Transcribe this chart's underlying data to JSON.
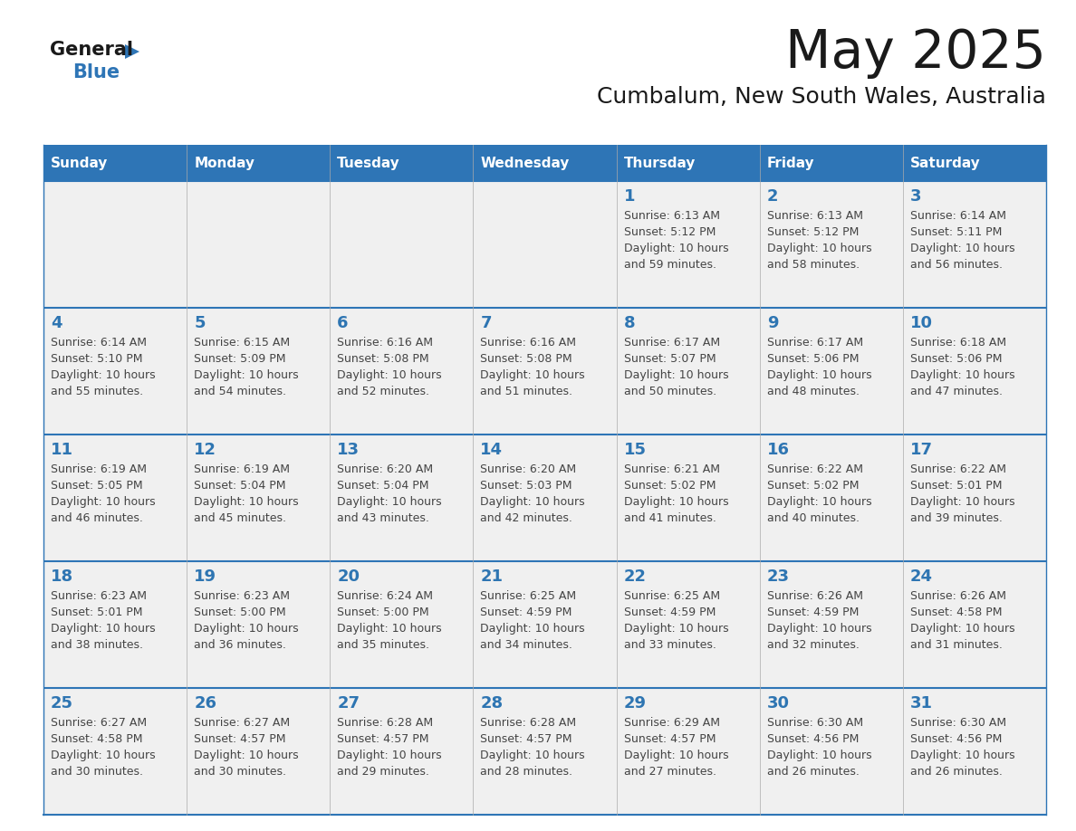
{
  "title": "May 2025",
  "subtitle": "Cumbalum, New South Wales, Australia",
  "header_color": "#2E75B6",
  "header_text_color": "#FFFFFF",
  "background_color": "#FFFFFF",
  "cell_bg_color": "#F0F0F0",
  "day_names": [
    "Sunday",
    "Monday",
    "Tuesday",
    "Wednesday",
    "Thursday",
    "Friday",
    "Saturday"
  ],
  "day_number_color": "#2E75B2",
  "text_color": "#444444",
  "line_color": "#2E75B6",
  "logo_general_color": "#1a1a1a",
  "logo_blue_color": "#2E75B6",
  "logo_triangle_color": "#2E75B6",
  "weeks": [
    [
      {
        "day": null,
        "sunrise": null,
        "sunset": null,
        "daylight_hours": null,
        "daylight_minutes": null
      },
      {
        "day": null,
        "sunrise": null,
        "sunset": null,
        "daylight_hours": null,
        "daylight_minutes": null
      },
      {
        "day": null,
        "sunrise": null,
        "sunset": null,
        "daylight_hours": null,
        "daylight_minutes": null
      },
      {
        "day": null,
        "sunrise": null,
        "sunset": null,
        "daylight_hours": null,
        "daylight_minutes": null
      },
      {
        "day": 1,
        "sunrise": "6:13 AM",
        "sunset": "5:12 PM",
        "daylight_hours": 10,
        "daylight_minutes": 59
      },
      {
        "day": 2,
        "sunrise": "6:13 AM",
        "sunset": "5:12 PM",
        "daylight_hours": 10,
        "daylight_minutes": 58
      },
      {
        "day": 3,
        "sunrise": "6:14 AM",
        "sunset": "5:11 PM",
        "daylight_hours": 10,
        "daylight_minutes": 56
      }
    ],
    [
      {
        "day": 4,
        "sunrise": "6:14 AM",
        "sunset": "5:10 PM",
        "daylight_hours": 10,
        "daylight_minutes": 55
      },
      {
        "day": 5,
        "sunrise": "6:15 AM",
        "sunset": "5:09 PM",
        "daylight_hours": 10,
        "daylight_minutes": 54
      },
      {
        "day": 6,
        "sunrise": "6:16 AM",
        "sunset": "5:08 PM",
        "daylight_hours": 10,
        "daylight_minutes": 52
      },
      {
        "day": 7,
        "sunrise": "6:16 AM",
        "sunset": "5:08 PM",
        "daylight_hours": 10,
        "daylight_minutes": 51
      },
      {
        "day": 8,
        "sunrise": "6:17 AM",
        "sunset": "5:07 PM",
        "daylight_hours": 10,
        "daylight_minutes": 50
      },
      {
        "day": 9,
        "sunrise": "6:17 AM",
        "sunset": "5:06 PM",
        "daylight_hours": 10,
        "daylight_minutes": 48
      },
      {
        "day": 10,
        "sunrise": "6:18 AM",
        "sunset": "5:06 PM",
        "daylight_hours": 10,
        "daylight_minutes": 47
      }
    ],
    [
      {
        "day": 11,
        "sunrise": "6:19 AM",
        "sunset": "5:05 PM",
        "daylight_hours": 10,
        "daylight_minutes": 46
      },
      {
        "day": 12,
        "sunrise": "6:19 AM",
        "sunset": "5:04 PM",
        "daylight_hours": 10,
        "daylight_minutes": 45
      },
      {
        "day": 13,
        "sunrise": "6:20 AM",
        "sunset": "5:04 PM",
        "daylight_hours": 10,
        "daylight_minutes": 43
      },
      {
        "day": 14,
        "sunrise": "6:20 AM",
        "sunset": "5:03 PM",
        "daylight_hours": 10,
        "daylight_minutes": 42
      },
      {
        "day": 15,
        "sunrise": "6:21 AM",
        "sunset": "5:02 PM",
        "daylight_hours": 10,
        "daylight_minutes": 41
      },
      {
        "day": 16,
        "sunrise": "6:22 AM",
        "sunset": "5:02 PM",
        "daylight_hours": 10,
        "daylight_minutes": 40
      },
      {
        "day": 17,
        "sunrise": "6:22 AM",
        "sunset": "5:01 PM",
        "daylight_hours": 10,
        "daylight_minutes": 39
      }
    ],
    [
      {
        "day": 18,
        "sunrise": "6:23 AM",
        "sunset": "5:01 PM",
        "daylight_hours": 10,
        "daylight_minutes": 38
      },
      {
        "day": 19,
        "sunrise": "6:23 AM",
        "sunset": "5:00 PM",
        "daylight_hours": 10,
        "daylight_minutes": 36
      },
      {
        "day": 20,
        "sunrise": "6:24 AM",
        "sunset": "5:00 PM",
        "daylight_hours": 10,
        "daylight_minutes": 35
      },
      {
        "day": 21,
        "sunrise": "6:25 AM",
        "sunset": "4:59 PM",
        "daylight_hours": 10,
        "daylight_minutes": 34
      },
      {
        "day": 22,
        "sunrise": "6:25 AM",
        "sunset": "4:59 PM",
        "daylight_hours": 10,
        "daylight_minutes": 33
      },
      {
        "day": 23,
        "sunrise": "6:26 AM",
        "sunset": "4:59 PM",
        "daylight_hours": 10,
        "daylight_minutes": 32
      },
      {
        "day": 24,
        "sunrise": "6:26 AM",
        "sunset": "4:58 PM",
        "daylight_hours": 10,
        "daylight_minutes": 31
      }
    ],
    [
      {
        "day": 25,
        "sunrise": "6:27 AM",
        "sunset": "4:58 PM",
        "daylight_hours": 10,
        "daylight_minutes": 30
      },
      {
        "day": 26,
        "sunrise": "6:27 AM",
        "sunset": "4:57 PM",
        "daylight_hours": 10,
        "daylight_minutes": 30
      },
      {
        "day": 27,
        "sunrise": "6:28 AM",
        "sunset": "4:57 PM",
        "daylight_hours": 10,
        "daylight_minutes": 29
      },
      {
        "day": 28,
        "sunrise": "6:28 AM",
        "sunset": "4:57 PM",
        "daylight_hours": 10,
        "daylight_minutes": 28
      },
      {
        "day": 29,
        "sunrise": "6:29 AM",
        "sunset": "4:57 PM",
        "daylight_hours": 10,
        "daylight_minutes": 27
      },
      {
        "day": 30,
        "sunrise": "6:30 AM",
        "sunset": "4:56 PM",
        "daylight_hours": 10,
        "daylight_minutes": 26
      },
      {
        "day": 31,
        "sunrise": "6:30 AM",
        "sunset": "4:56 PM",
        "daylight_hours": 10,
        "daylight_minutes": 26
      }
    ]
  ]
}
